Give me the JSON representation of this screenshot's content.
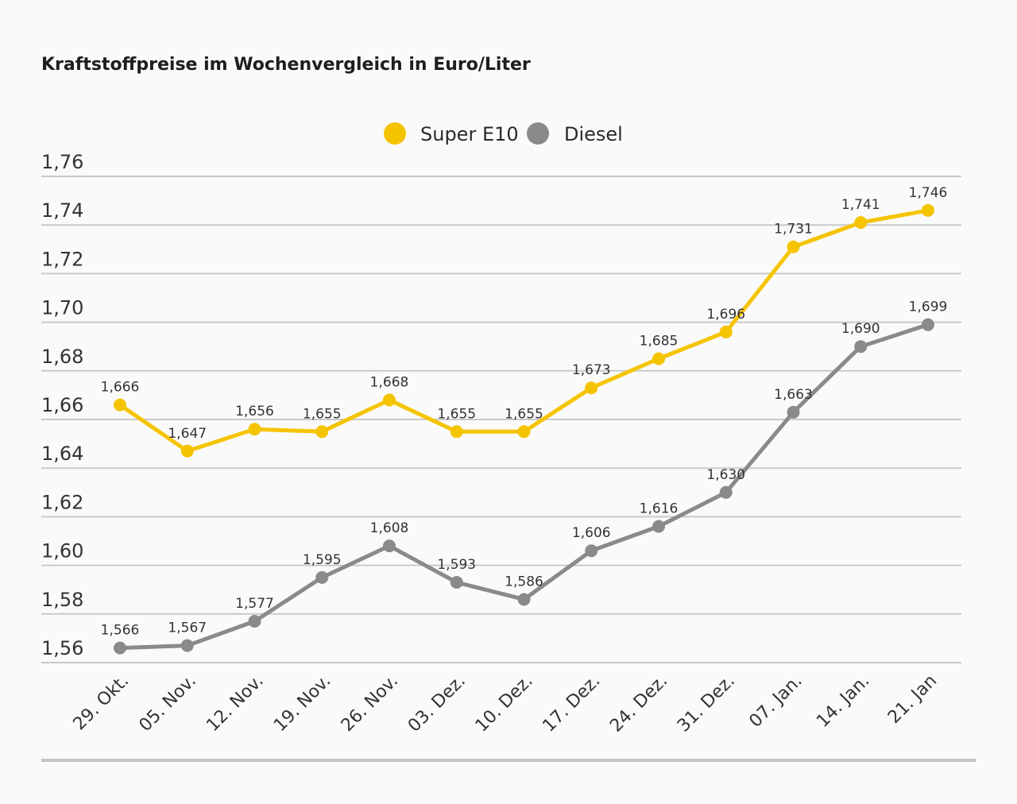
{
  "chart_data": {
    "type": "line",
    "title": "Kraftstoffpreise im Wochenvergleich in Euro/Liter",
    "xlabel": "",
    "ylabel": "",
    "ylim": [
      1.56,
      1.76
    ],
    "yticks": [
      "1,56",
      "1,58",
      "1,60",
      "1,62",
      "1,64",
      "1,66",
      "1,68",
      "1,70",
      "1,72",
      "1,74",
      "1,76"
    ],
    "grid": true,
    "legend_position": "top-center",
    "categories": [
      "29. Okt.",
      "05. Nov.",
      "12. Nov.",
      "19. Nov.",
      "26. Nov.",
      "03. Dez.",
      "10. Dez.",
      "17. Dez.",
      "24. Dez.",
      "31. Dez.",
      "07. Jan.",
      "14. Jan.",
      "21. Jan"
    ],
    "series": [
      {
        "name": "Super E10",
        "color": "#f5c400",
        "values": [
          1.666,
          1.647,
          1.656,
          1.655,
          1.668,
          1.655,
          1.655,
          1.673,
          1.685,
          1.696,
          1.731,
          1.741,
          1.746
        ],
        "labels": [
          "1,666",
          "1,647",
          "1,656",
          "1,655",
          "1,668",
          "1,655",
          "1,655",
          "1,673",
          "1,685",
          "1,696",
          "1,731",
          "1,741",
          "1,746"
        ]
      },
      {
        "name": "Diesel",
        "color": "#8a8a8a",
        "values": [
          1.566,
          1.567,
          1.577,
          1.595,
          1.608,
          1.593,
          1.586,
          1.606,
          1.616,
          1.63,
          1.663,
          1.69,
          1.699
        ],
        "labels": [
          "1,566",
          "1,567",
          "1,577",
          "1,595",
          "1,608",
          "1,593",
          "1,586",
          "1,606",
          "1,616",
          "1,630",
          "1,663",
          "1,690",
          "1,699"
        ]
      }
    ]
  }
}
